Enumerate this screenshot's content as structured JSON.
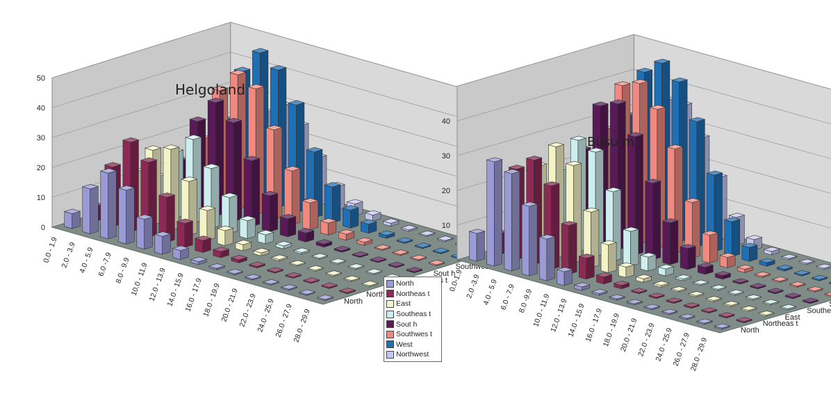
{
  "legend": [
    {
      "label": "North",
      "color": "#9a9ad6"
    },
    {
      "label": "Northeas t",
      "color": "#8a2a55"
    },
    {
      "label": "East",
      "color": "#f4f3c6"
    },
    {
      "label": "Southeas t",
      "color": "#cdeeee"
    },
    {
      "label": "Sout h",
      "color": "#5a1a58"
    },
    {
      "label": "Southwes t",
      "color": "#f08a80"
    },
    {
      "label": "West",
      "color": "#1f6fb5"
    },
    {
      "label": "Northwest",
      "color": "#c4c8f0"
    }
  ],
  "chart_data": [
    {
      "type": "bar3d",
      "title": "Helgoland",
      "categories": [
        "0.0 - 1.9",
        "2.0 - 3.9",
        "4.0 - 5.9",
        "6.0 -7.9",
        "8.0 - 9.9",
        "10.0 - 11.9",
        "12.0 - 13.9",
        "14.0 - 15.9",
        "16.0 - 17.9",
        "18.0 - 19.9",
        "20.0 - 21.9",
        "22.0 - 23.9",
        "24.0 - 25.9",
        "26.0 - 27.9",
        "28.0 - 29.9"
      ],
      "series_labels": [
        "North",
        "Northeas t",
        "East",
        "Southeas t",
        "Sout h",
        "Southwes t",
        "West",
        "Northwes t"
      ],
      "zticks": [
        "0",
        "10",
        "20",
        "30",
        "40",
        "50"
      ],
      "zlim": [
        0,
        50
      ],
      "series": [
        {
          "name": "North",
          "values": [
            5,
            15,
            22,
            18,
            10,
            6,
            3,
            1,
            0.5,
            0.3,
            0.2,
            0.1,
            0,
            0,
            0
          ]
        },
        {
          "name": "Northeast",
          "values": [
            5,
            20,
            30,
            25,
            15,
            8,
            4,
            2,
            1,
            0.5,
            0.2,
            0.1,
            0,
            0,
            0
          ]
        },
        {
          "name": "East",
          "values": [
            4,
            16,
            25,
            27,
            18,
            10,
            5,
            2,
            1,
            0.5,
            0.2,
            0.1,
            0,
            0,
            0
          ]
        },
        {
          "name": "Southeast",
          "values": [
            3,
            12,
            22,
            28,
            20,
            12,
            6,
            3,
            1,
            0.5,
            0.2,
            0.1,
            0,
            0,
            0
          ]
        },
        {
          "name": "South",
          "values": [
            4,
            15,
            30,
            38,
            33,
            22,
            12,
            6,
            3,
            1,
            0.5,
            0.2,
            0,
            0,
            0
          ]
        },
        {
          "name": "Southwest",
          "values": [
            6,
            20,
            38,
            45,
            42,
            30,
            18,
            9,
            4,
            2,
            1,
            0.3,
            0,
            0,
            0
          ]
        },
        {
          "name": "West",
          "values": [
            7,
            24,
            42,
            50,
            46,
            36,
            22,
            12,
            6,
            3,
            1,
            0.4,
            0.2,
            0,
            0
          ]
        },
        {
          "name": "Northwest",
          "values": [
            4,
            14,
            26,
            30,
            25,
            16,
            8,
            4,
            2,
            1,
            0.5,
            0.2,
            0,
            0,
            0
          ]
        }
      ]
    },
    {
      "type": "bar3d",
      "title": "Büsu  m",
      "categories": [
        "0.0-1.9",
        "2.0 -3.9",
        "4.0 - 5.9",
        "6.0 - 7.9",
        "8.0 -9.9",
        "10.0 - 11.9",
        "12.0 - 13.9",
        "14.0 - 15.9",
        "16.0 - 17.9",
        "18.0 - 19.9",
        "20.0 - 21.9",
        "22.0 - 23.9",
        "24.0 - 25.9",
        "26.0 - 27.9",
        "28.0 - 29.9"
      ],
      "series_labels": [
        "North",
        "Northeas t",
        "East",
        "Southeas t",
        "Sout h",
        "Southwes t",
        "West",
        "Northwes"
      ],
      "zticks": [
        "10",
        "20",
        "30",
        "40"
      ],
      "zlim": [
        0,
        50
      ],
      "series": [
        {
          "name": "North",
          "values": [
            8,
            30,
            28,
            20,
            12,
            4,
            1,
            0.5,
            0.2,
            0.1,
            0.1,
            0,
            0,
            0,
            0
          ]
        },
        {
          "name": "Northeast",
          "values": [
            6,
            26,
            30,
            24,
            14,
            6,
            2,
            1,
            0.3,
            0.1,
            0,
            0,
            0,
            0,
            0
          ]
        },
        {
          "name": "East",
          "values": [
            5,
            25,
            32,
            28,
            16,
            8,
            3,
            1,
            0.5,
            0.2,
            0.1,
            0,
            0,
            0,
            0
          ]
        },
        {
          "name": "Southeast",
          "values": [
            4,
            22,
            32,
            30,
            20,
            10,
            4,
            2,
            0.5,
            0.2,
            0.1,
            0,
            0,
            0,
            0
          ]
        },
        {
          "name": "South",
          "values": [
            5,
            26,
            40,
            42,
            34,
            22,
            12,
            6,
            2,
            1,
            0.3,
            0.1,
            0,
            0,
            0
          ]
        },
        {
          "name": "Southwest",
          "values": [
            6,
            30,
            44,
            46,
            40,
            30,
            16,
            8,
            3,
            1,
            0.4,
            0.1,
            0,
            0,
            0
          ]
        },
        {
          "name": "West",
          "values": [
            8,
            32,
            46,
            50,
            46,
            36,
            22,
            10,
            4,
            1,
            0.5,
            0.2,
            0,
            0,
            0
          ]
        },
        {
          "name": "Northwest",
          "values": [
            5,
            24,
            36,
            36,
            28,
            18,
            8,
            3,
            1,
            0.3,
            0.1,
            0,
            0,
            0,
            0
          ]
        }
      ]
    }
  ]
}
